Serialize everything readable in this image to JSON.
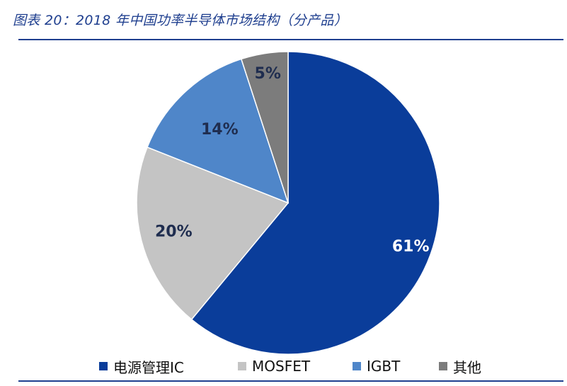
{
  "figure": {
    "title": "图表 20：2018 年中国功率半导体市场结构（分产品）"
  },
  "chart_data": {
    "type": "pie",
    "title": "",
    "start": "12 o'clock",
    "direction": "clockwise",
    "categories": [
      "电源管理IC",
      "MOSFET",
      "IGBT",
      "其他"
    ],
    "values": [
      61,
      20,
      14,
      5
    ],
    "data_labels": [
      "61%",
      "20%",
      "14%",
      "5%"
    ],
    "colors": [
      "#0a3d9a",
      "#c4c4c4",
      "#4f86c9",
      "#7c7c7c"
    ],
    "label_colors": [
      "#ffffff",
      "#1f2d4f",
      "#1f2d4f",
      "#1f2d4f"
    ],
    "legend": {
      "position": "bottom",
      "items": [
        "电源管理IC",
        "MOSFET",
        "IGBT",
        "其他"
      ]
    }
  }
}
